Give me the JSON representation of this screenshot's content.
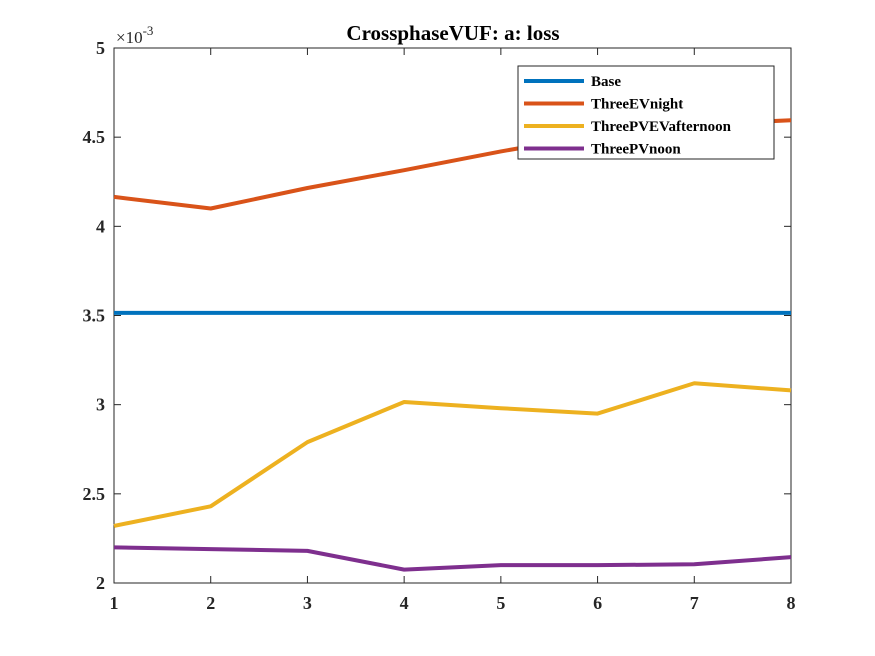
{
  "chart_data": {
    "type": "line",
    "title": "CrossphaseVUF: a: loss",
    "xlabel": "",
    "ylabel": "",
    "xlim": [
      1,
      8
    ],
    "ylim": [
      2,
      5
    ],
    "y_scale_factor_label": "×10",
    "y_scale_exponent": "-3",
    "x_ticks": [
      "1",
      "2",
      "3",
      "4",
      "5",
      "6",
      "7",
      "8"
    ],
    "y_ticks": [
      "2",
      "2.5",
      "3",
      "3.5",
      "4",
      "4.5",
      "5"
    ],
    "grid": false,
    "legend_position": "top-right",
    "x": [
      1,
      2,
      3,
      4,
      5,
      6,
      7,
      8
    ],
    "series": [
      {
        "name": "Base",
        "color": "#0072BD",
        "values": [
          3.515,
          3.515,
          3.515,
          3.515,
          3.515,
          3.515,
          3.515,
          3.515
        ]
      },
      {
        "name": "ThreeEVnight",
        "color": "#D95319",
        "values": [
          4.165,
          4.1,
          4.215,
          4.315,
          4.42,
          4.515,
          4.57,
          4.595
        ]
      },
      {
        "name": "ThreePVEVafternoon",
        "color": "#EDB120",
        "values": [
          2.32,
          2.43,
          2.79,
          3.015,
          2.98,
          2.95,
          3.12,
          3.08
        ]
      },
      {
        "name": "ThreePVnoon",
        "color": "#7E2F8E",
        "values": [
          2.2,
          2.19,
          2.18,
          2.075,
          2.1,
          2.1,
          2.105,
          2.145
        ]
      }
    ]
  }
}
